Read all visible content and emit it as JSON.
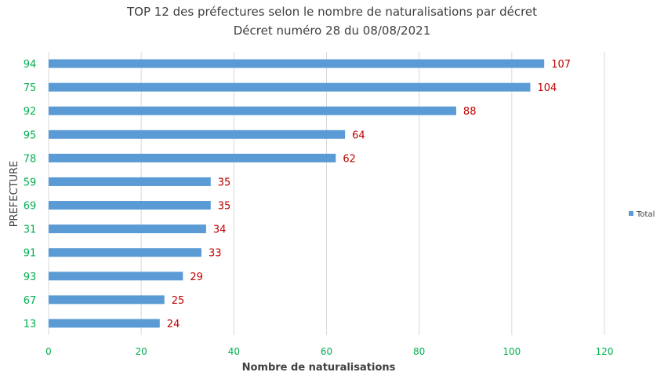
{
  "chart_data": {
    "type": "bar",
    "orientation": "horizontal",
    "title": "TOP 12 des préfectures selon le nombre de naturalisations par décret",
    "subtitle": "Décret numéro 28 du 08/08/2021",
    "xlabel": "Nombre de naturalisations",
    "ylabel": "PREFECTURE",
    "xlim": [
      0,
      120
    ],
    "xticks": [
      0,
      20,
      40,
      60,
      80,
      100,
      120
    ],
    "grid": true,
    "legend_position": "right",
    "categories": [
      "94",
      "75",
      "92",
      "95",
      "78",
      "59",
      "69",
      "31",
      "91",
      "93",
      "67",
      "13"
    ],
    "series": [
      {
        "name": "Total",
        "values": [
          107,
          104,
          88,
          64,
          62,
          35,
          35,
          34,
          33,
          29,
          25,
          24
        ]
      }
    ],
    "colors": {
      "bar": "#5B9BD5",
      "data_label": "#C00000",
      "tick_label": "#00B050",
      "gridline": "#D9D9D9",
      "axis_title": "#404040"
    }
  }
}
